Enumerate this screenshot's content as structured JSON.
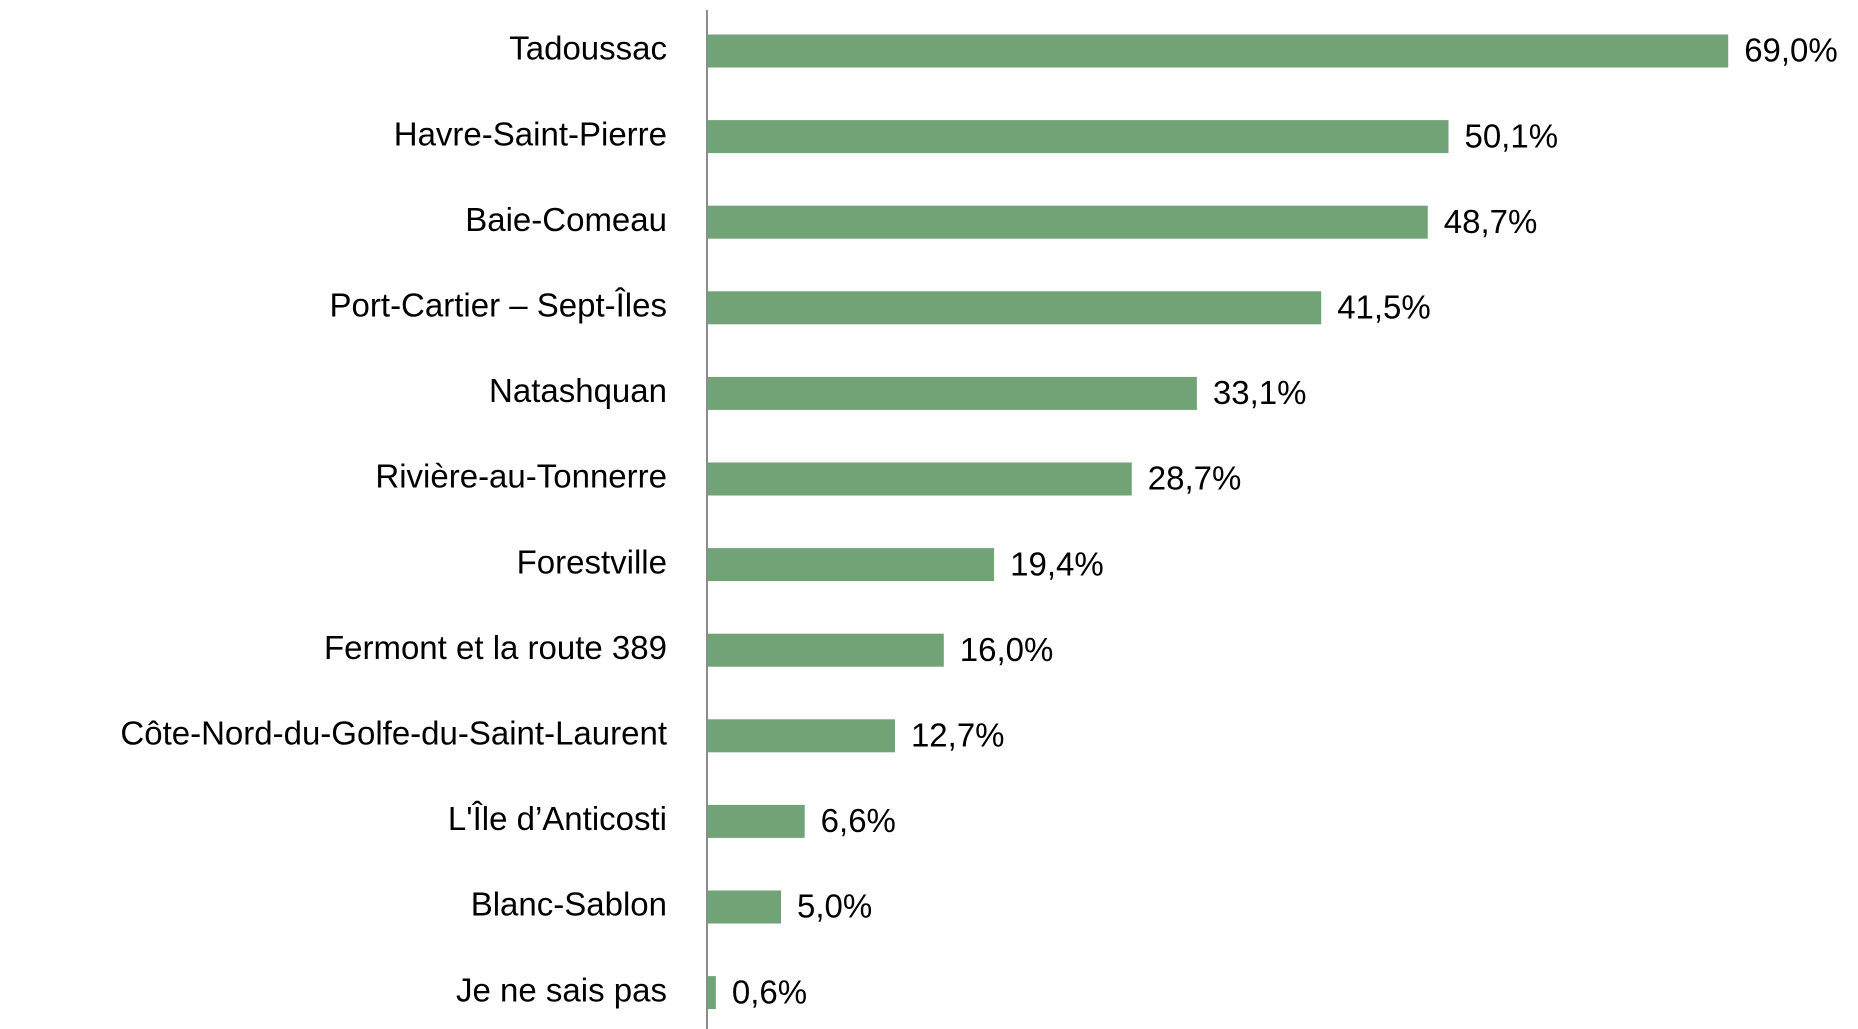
{
  "chart_data": {
    "type": "barh",
    "categories": [
      "Tadoussac",
      "Havre-Saint-Pierre",
      "Baie-Comeau",
      "Port-Cartier – Sept-Îles",
      "Natashquan",
      "Rivière-au-Tonnerre",
      "Forestville",
      "Fermont et la route 389",
      "Côte-Nord-du-Golfe-du-Saint-Laurent",
      "L'Île d’Anticosti",
      "Blanc-Sablon",
      "Je ne sais pas"
    ],
    "values": [
      69.0,
      50.1,
      48.7,
      41.5,
      33.1,
      28.7,
      19.4,
      16.0,
      12.7,
      6.6,
      5.0,
      0.6
    ],
    "value_labels": [
      "69,0%",
      "50,1%",
      "48,7%",
      "41,5%",
      "33,1%",
      "28,7%",
      "19,4%",
      "16,0%",
      "12,7%",
      "6,6%",
      "5,0%",
      "0,6%"
    ],
    "color": "#71a376"
  }
}
